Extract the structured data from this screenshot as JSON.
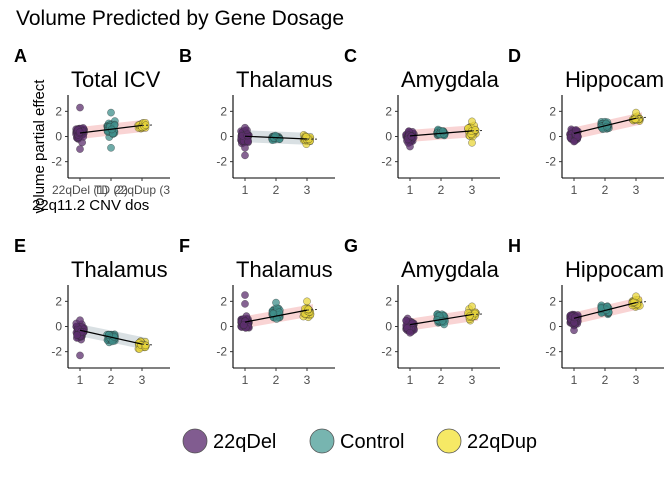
{
  "figure": {
    "title": "Volume Predicted by Gene Dosage"
  },
  "legend": {
    "placement": "bottom",
    "items": [
      {
        "label": "22qDel",
        "color": "#6b3f7d"
      },
      {
        "label": "Control",
        "color": "#5fa8a2"
      },
      {
        "label": "22qDup",
        "color": "#f4e54a"
      }
    ]
  },
  "colors": {
    "del": "#5c2f6e",
    "control": "#3f8f8b",
    "dup": "#e8d63b",
    "ribbon_neg": "#cfd8dc",
    "ribbon_pos": "#f7c9c9",
    "fit_line": "#000000"
  },
  "chart_data": [
    {
      "type": "scatter",
      "letter": "A",
      "title": "Total ICV",
      "ylabel": "volume partial effect",
      "xlabel": "22q11.2 CNV dos",
      "x_categories": [
        "22qDel (1)",
        "TD (2)",
        "22qDup (3"
      ],
      "x_tick_text": [
        "22qDel (1)",
        "TD (2)",
        "22qDup (3"
      ],
      "y_ticks": [
        -2,
        0,
        2
      ],
      "ylim": [
        -3.3,
        3.3
      ],
      "group_means": [
        0.25,
        0.6,
        0.85
      ],
      "group_spread": [
        0.55,
        0.55,
        0.3
      ],
      "outliers": [
        [
          1,
          2.3
        ],
        [
          1,
          -1.0
        ],
        [
          2,
          1.9
        ],
        [
          2,
          -0.9
        ]
      ],
      "fit": {
        "start": 0.28,
        "end": 0.88
      }
    },
    {
      "type": "scatter",
      "letter": "B",
      "title": "Thalamus",
      "x_categories": [
        "1",
        "2",
        "3"
      ],
      "x_tick_text": [
        "1",
        "2",
        "3"
      ],
      "y_ticks": [
        -2,
        0,
        2
      ],
      "ylim": [
        -3.3,
        3.3
      ],
      "group_means": [
        -0.05,
        -0.12,
        -0.18
      ],
      "group_spread": [
        0.45,
        0.2,
        0.3
      ],
      "outliers": [
        [
          1,
          -1.5
        ],
        [
          1,
          -0.9
        ],
        [
          1,
          0.7
        ]
      ],
      "fit": {
        "start": 0.02,
        "end": -0.2
      }
    },
    {
      "type": "scatter",
      "letter": "C",
      "title": "Amygdala",
      "x_categories": [
        "1",
        "2",
        "3"
      ],
      "x_tick_text": [
        "1",
        "2",
        "3"
      ],
      "y_ticks": [
        -2,
        0,
        2
      ],
      "ylim": [
        -3.3,
        3.3
      ],
      "group_means": [
        0.0,
        0.3,
        0.4
      ],
      "group_spread": [
        0.4,
        0.3,
        0.45
      ],
      "outliers": [
        [
          1,
          -0.8
        ],
        [
          3,
          1.2
        ],
        [
          3,
          -0.5
        ]
      ],
      "fit": {
        "start": 0.05,
        "end": 0.45
      }
    },
    {
      "type": "scatter",
      "letter": "D",
      "title": "Hippocam",
      "x_categories": [
        "1",
        "2",
        "3"
      ],
      "x_tick_text": [
        "1",
        "2",
        "3"
      ],
      "y_ticks": [
        -2,
        0,
        2
      ],
      "ylim": [
        -3.3,
        3.3
      ],
      "group_means": [
        0.1,
        0.85,
        1.35
      ],
      "group_spread": [
        0.4,
        0.3,
        0.3
      ],
      "outliers": [
        [
          1,
          -0.4
        ],
        [
          3,
          1.9
        ]
      ],
      "fit": {
        "start": 0.25,
        "end": 1.45
      }
    },
    {
      "type": "scatter",
      "letter": "E",
      "title": "Thalamus",
      "x_categories": [
        "1",
        "2",
        "3"
      ],
      "x_tick_text": [
        "1",
        "2",
        "3"
      ],
      "y_ticks": [
        -2,
        0,
        2
      ],
      "ylim": [
        -3.3,
        3.3
      ],
      "group_means": [
        -0.5,
        -0.9,
        -1.5
      ],
      "group_spread": [
        0.55,
        0.35,
        0.35
      ],
      "outliers": [
        [
          1,
          -2.3
        ],
        [
          1,
          0.5
        ]
      ],
      "fit": {
        "start": -0.3,
        "end": -1.4
      }
    },
    {
      "type": "scatter",
      "letter": "F",
      "title": "Thalamus",
      "x_categories": [
        "1",
        "2",
        "3"
      ],
      "x_tick_text": [
        "1",
        "2",
        "3"
      ],
      "y_ticks": [
        -2,
        0,
        2
      ],
      "ylim": [
        -3.3,
        3.3
      ],
      "group_means": [
        0.3,
        1.0,
        1.1
      ],
      "group_spread": [
        0.45,
        0.4,
        0.4
      ],
      "outliers": [
        [
          1,
          2.5
        ],
        [
          1,
          1.8
        ],
        [
          2,
          1.9
        ],
        [
          3,
          2.0
        ]
      ],
      "fit": {
        "start": 0.35,
        "end": 1.3
      }
    },
    {
      "type": "scatter",
      "letter": "G",
      "title": "Amygdala",
      "x_categories": [
        "1",
        "2",
        "3"
      ],
      "x_tick_text": [
        "1",
        "2",
        "3"
      ],
      "y_ticks": [
        -2,
        0,
        2
      ],
      "ylim": [
        -3.3,
        3.3
      ],
      "group_means": [
        0.05,
        0.6,
        0.9
      ],
      "group_spread": [
        0.4,
        0.35,
        0.35
      ],
      "outliers": [
        [
          1,
          -0.5
        ],
        [
          3,
          1.6
        ]
      ],
      "fit": {
        "start": 0.15,
        "end": 0.95
      }
    },
    {
      "type": "scatter",
      "letter": "H",
      "title": "Hippocam",
      "x_categories": [
        "1",
        "2",
        "3"
      ],
      "x_tick_text": [
        "1",
        "2",
        "3"
      ],
      "y_ticks": [
        -2,
        0,
        2
      ],
      "ylim": [
        -3.3,
        3.3
      ],
      "group_means": [
        0.6,
        1.3,
        1.85
      ],
      "group_spread": [
        0.45,
        0.35,
        0.3
      ],
      "outliers": [
        [
          1,
          -0.3
        ],
        [
          3,
          2.4
        ]
      ],
      "fit": {
        "start": 0.65,
        "end": 1.9
      }
    }
  ]
}
